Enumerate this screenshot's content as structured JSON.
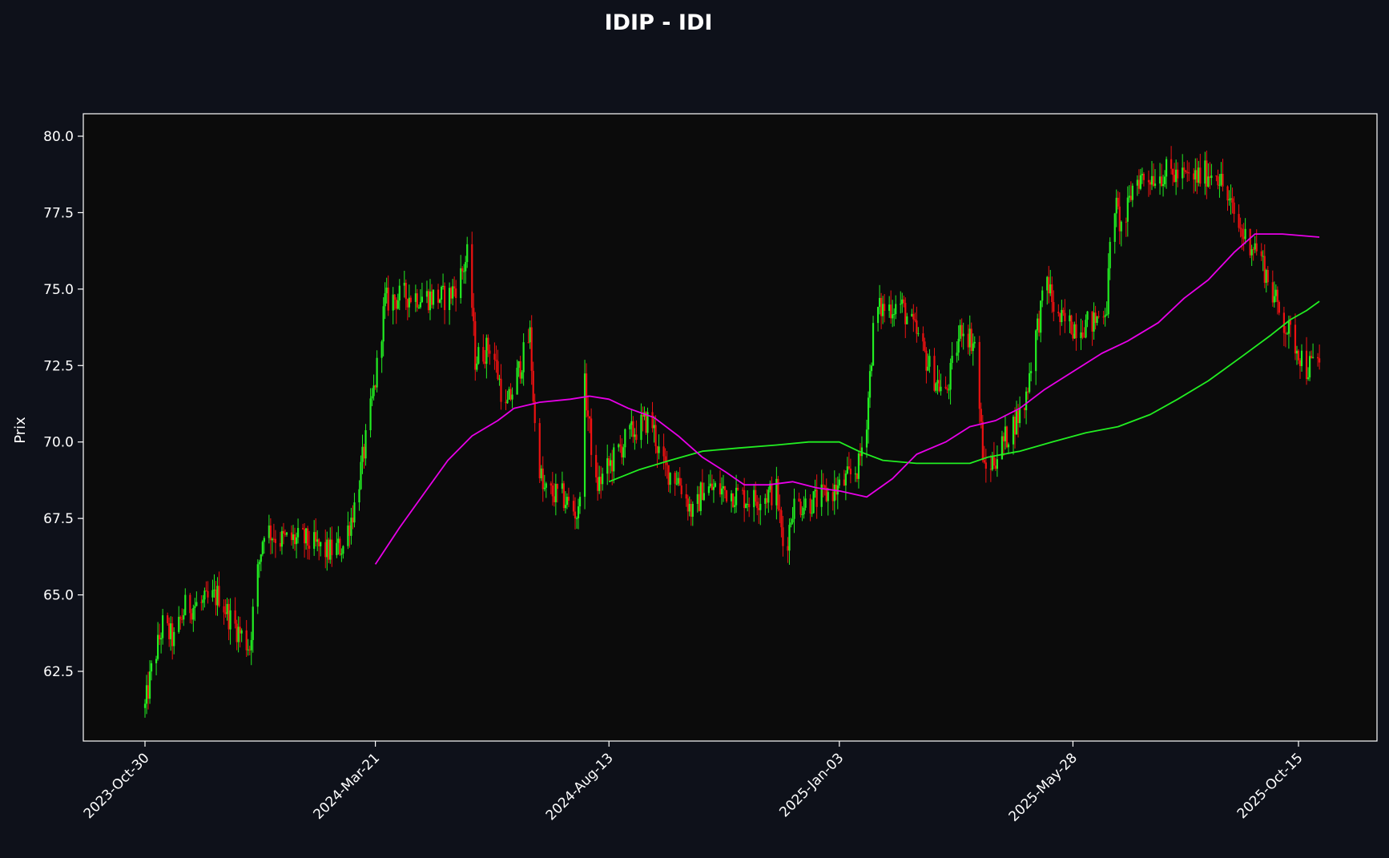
{
  "chart_data": {
    "type": "candlestick",
    "title": "IDIP - IDI",
    "xlabel": "",
    "ylabel": "Prix",
    "x_tick_labels": [
      "2023-Oct-30",
      "2024-Mar-21",
      "2024-Aug-13",
      "2025-Jan-03",
      "2025-May-28",
      "2025-Oct-15"
    ],
    "x_tick_dates": [
      "2023-10-30",
      "2024-03-21",
      "2024-08-13",
      "2025-01-03",
      "2025-05-28",
      "2025-10-15"
    ],
    "x_range": [
      "2023-10-30",
      "2025-10-28"
    ],
    "y_ticks": [
      62.5,
      65.0,
      67.5,
      70.0,
      72.5,
      75.0,
      77.5,
      80.0
    ],
    "y_tick_labels": [
      "62.5",
      "65.0",
      "67.5",
      "70.0",
      "72.5",
      "75.0",
      "77.5",
      "80.0"
    ],
    "ylim": [
      60.2,
      80.7
    ],
    "grid": false,
    "legend": "none",
    "colors": {
      "background": "#0e111a",
      "plot_background": "#0b0b0b",
      "up": "#22ee22",
      "down": "#ee1111",
      "sma_fast": "#e800e8",
      "sma_slow": "#22ee22",
      "axis": "#ffffff"
    },
    "price_anchors": [
      [
        "2023-10-30",
        61.3
      ],
      [
        "2023-11-03",
        62.5
      ],
      [
        "2023-11-10",
        64.0
      ],
      [
        "2023-11-17",
        63.5
      ],
      [
        "2023-11-24",
        64.6
      ],
      [
        "2023-12-05",
        64.7
      ],
      [
        "2023-12-15",
        65.0
      ],
      [
        "2023-12-22",
        64.2
      ],
      [
        "2024-01-03",
        63.3
      ],
      [
        "2024-01-06",
        65.0
      ],
      [
        "2024-01-12",
        67.2
      ],
      [
        "2024-01-22",
        66.8
      ],
      [
        "2024-02-05",
        66.8
      ],
      [
        "2024-02-20",
        66.4
      ],
      [
        "2024-03-01",
        66.6
      ],
      [
        "2024-03-08",
        67.9
      ],
      [
        "2024-03-15",
        70.0
      ],
      [
        "2024-03-21",
        72.0
      ],
      [
        "2024-03-27",
        74.6
      ],
      [
        "2024-04-10",
        74.8
      ],
      [
        "2024-05-05",
        74.7
      ],
      [
        "2024-05-12",
        75.3
      ],
      [
        "2024-05-18",
        76.2
      ],
      [
        "2024-05-22",
        72.7
      ],
      [
        "2024-06-01",
        73.2
      ],
      [
        "2024-06-10",
        71.0
      ],
      [
        "2024-06-25",
        73.5
      ],
      [
        "2024-06-28",
        70.5
      ],
      [
        "2024-07-03",
        68.4
      ],
      [
        "2024-07-15",
        68.2
      ],
      [
        "2024-07-25",
        67.6
      ],
      [
        "2024-07-29",
        71.8
      ],
      [
        "2024-08-05",
        68.5
      ],
      [
        "2024-08-13",
        69.2
      ],
      [
        "2024-08-25",
        70.2
      ],
      [
        "2024-09-08",
        70.8
      ],
      [
        "2024-09-15",
        69.2
      ],
      [
        "2024-09-25",
        68.8
      ],
      [
        "2024-10-05",
        67.5
      ],
      [
        "2024-10-10",
        68.5
      ],
      [
        "2024-10-25",
        68.4
      ],
      [
        "2024-11-10",
        68.1
      ],
      [
        "2024-11-25",
        68.4
      ],
      [
        "2024-11-30",
        66.2
      ],
      [
        "2024-12-05",
        67.9
      ],
      [
        "2024-12-20",
        68.1
      ],
      [
        "2025-01-03",
        68.5
      ],
      [
        "2025-01-15",
        69.2
      ],
      [
        "2025-01-20",
        70.8
      ],
      [
        "2025-01-25",
        74.3
      ],
      [
        "2025-02-10",
        74.5
      ],
      [
        "2025-02-20",
        73.5
      ],
      [
        "2025-03-01",
        72.3
      ],
      [
        "2025-03-10",
        71.5
      ],
      [
        "2025-03-20",
        73.8
      ],
      [
        "2025-03-28",
        73.2
      ],
      [
        "2025-04-03",
        69.0
      ],
      [
        "2025-04-10",
        69.5
      ],
      [
        "2025-04-20",
        70.5
      ],
      [
        "2025-04-28",
        71.2
      ],
      [
        "2025-05-03",
        73.0
      ],
      [
        "2025-05-12",
        75.3
      ],
      [
        "2025-05-18",
        74.0
      ],
      [
        "2025-05-28",
        73.8
      ],
      [
        "2025-06-10",
        73.9
      ],
      [
        "2025-06-18",
        74.5
      ],
      [
        "2025-06-22",
        78.0
      ],
      [
        "2025-06-28",
        76.8
      ],
      [
        "2025-07-05",
        78.6
      ],
      [
        "2025-07-25",
        78.8
      ],
      [
        "2025-08-10",
        78.6
      ],
      [
        "2025-08-25",
        78.9
      ],
      [
        "2025-09-02",
        77.8
      ],
      [
        "2025-09-10",
        76.8
      ],
      [
        "2025-09-20",
        76.3
      ],
      [
        "2025-09-28",
        75.0
      ],
      [
        "2025-10-05",
        74.0
      ],
      [
        "2025-10-15",
        73.0
      ],
      [
        "2025-10-20",
        72.4
      ],
      [
        "2025-10-28",
        72.7
      ]
    ],
    "sma_fast": [
      [
        "2024-03-21",
        66.0
      ],
      [
        "2024-04-05",
        67.2
      ],
      [
        "2024-04-20",
        68.3
      ],
      [
        "2024-05-05",
        69.4
      ],
      [
        "2024-05-20",
        70.2
      ],
      [
        "2024-06-05",
        70.7
      ],
      [
        "2024-06-15",
        71.1
      ],
      [
        "2024-07-01",
        71.3
      ],
      [
        "2024-07-20",
        71.4
      ],
      [
        "2024-08-01",
        71.5
      ],
      [
        "2024-08-13",
        71.4
      ],
      [
        "2024-08-25",
        71.1
      ],
      [
        "2024-09-10",
        70.8
      ],
      [
        "2024-09-25",
        70.2
      ],
      [
        "2024-10-10",
        69.5
      ],
      [
        "2024-10-25",
        69.0
      ],
      [
        "2024-11-05",
        68.6
      ],
      [
        "2024-11-20",
        68.6
      ],
      [
        "2024-12-05",
        68.7
      ],
      [
        "2024-12-20",
        68.5
      ],
      [
        "2025-01-03",
        68.4
      ],
      [
        "2025-01-20",
        68.2
      ],
      [
        "2025-02-05",
        68.8
      ],
      [
        "2025-02-20",
        69.6
      ],
      [
        "2025-03-10",
        70.0
      ],
      [
        "2025-03-25",
        70.5
      ],
      [
        "2025-04-10",
        70.7
      ],
      [
        "2025-04-25",
        71.1
      ],
      [
        "2025-05-10",
        71.7
      ],
      [
        "2025-05-28",
        72.3
      ],
      [
        "2025-06-15",
        72.9
      ],
      [
        "2025-07-01",
        73.3
      ],
      [
        "2025-07-20",
        73.9
      ],
      [
        "2025-08-05",
        74.7
      ],
      [
        "2025-08-20",
        75.3
      ],
      [
        "2025-09-05",
        76.2
      ],
      [
        "2025-09-18",
        76.8
      ],
      [
        "2025-10-05",
        76.8
      ],
      [
        "2025-10-28",
        76.7
      ]
    ],
    "sma_slow": [
      [
        "2024-08-13",
        68.7
      ],
      [
        "2024-09-01",
        69.1
      ],
      [
        "2024-09-20",
        69.4
      ],
      [
        "2024-10-10",
        69.7
      ],
      [
        "2024-11-01",
        69.8
      ],
      [
        "2024-11-25",
        69.9
      ],
      [
        "2024-12-15",
        70.0
      ],
      [
        "2025-01-03",
        70.0
      ],
      [
        "2025-01-15",
        69.7
      ],
      [
        "2025-01-30",
        69.4
      ],
      [
        "2025-02-20",
        69.3
      ],
      [
        "2025-03-10",
        69.3
      ],
      [
        "2025-03-25",
        69.3
      ],
      [
        "2025-04-05",
        69.5
      ],
      [
        "2025-04-25",
        69.7
      ],
      [
        "2025-05-15",
        70.0
      ],
      [
        "2025-06-05",
        70.3
      ],
      [
        "2025-06-25",
        70.5
      ],
      [
        "2025-07-15",
        70.9
      ],
      [
        "2025-08-01",
        71.4
      ],
      [
        "2025-08-20",
        72.0
      ],
      [
        "2025-09-10",
        72.8
      ],
      [
        "2025-09-28",
        73.5
      ],
      [
        "2025-10-10",
        74.0
      ],
      [
        "2025-10-20",
        74.3
      ],
      [
        "2025-10-28",
        74.6
      ]
    ]
  }
}
